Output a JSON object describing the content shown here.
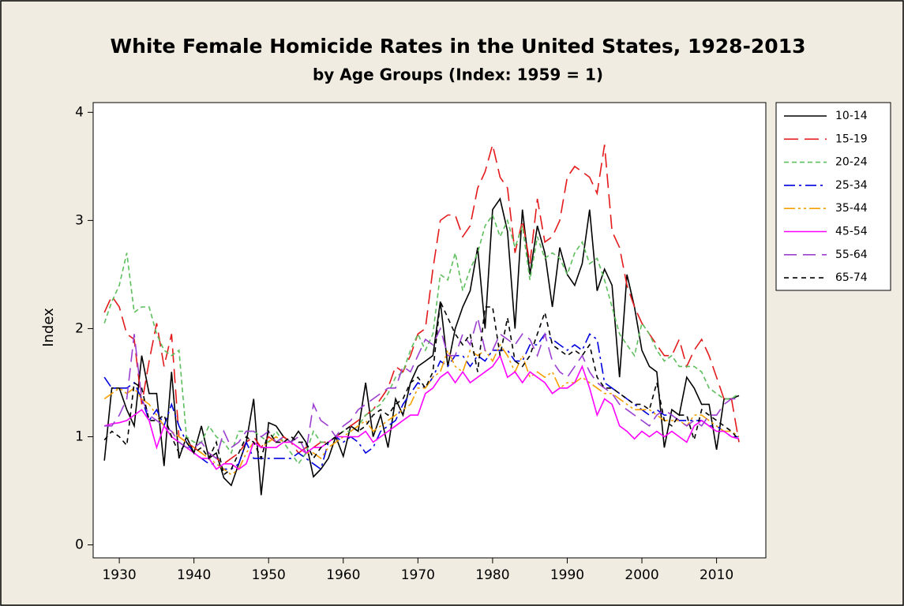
{
  "chart_data": {
    "type": "line",
    "title": "White Female Homicide Rates in the United States, 1928-2013",
    "subtitle": "by Age Groups (Index: 1959 = 1)",
    "y_label": "Index",
    "x": [
      1928,
      1929,
      1930,
      1931,
      1932,
      1933,
      1934,
      1935,
      1936,
      1937,
      1938,
      1939,
      1940,
      1941,
      1942,
      1943,
      1944,
      1945,
      1946,
      1947,
      1948,
      1949,
      1950,
      1951,
      1952,
      1953,
      1954,
      1955,
      1956,
      1957,
      1958,
      1959,
      1960,
      1961,
      1962,
      1963,
      1964,
      1965,
      1966,
      1967,
      1968,
      1969,
      1970,
      1971,
      1972,
      1973,
      1974,
      1975,
      1976,
      1977,
      1978,
      1979,
      1980,
      1981,
      1982,
      1983,
      1984,
      1985,
      1986,
      1987,
      1988,
      1989,
      1990,
      1991,
      1992,
      1993,
      1994,
      1995,
      1996,
      1997,
      1998,
      1999,
      2000,
      2001,
      2002,
      2003,
      2004,
      2005,
      2006,
      2007,
      2008,
      2009,
      2010,
      2011,
      2012,
      2013
    ],
    "xlim": [
      1926.5,
      2016.6
    ],
    "xticks": [
      1930,
      1940,
      1950,
      1960,
      1970,
      1980,
      1990,
      2000,
      2010
    ],
    "ylim": [
      -0.12,
      4.09
    ],
    "yticks": [
      0,
      1,
      2,
      3,
      4
    ],
    "legend": "right",
    "series": [
      {
        "name": "10-14",
        "color": "#000000",
        "values": [
          0.78,
          1.45,
          1.45,
          1.25,
          1.1,
          1.75,
          1.4,
          1.4,
          0.73,
          1.6,
          0.8,
          1.0,
          0.85,
          1.1,
          0.8,
          0.85,
          0.62,
          0.55,
          0.75,
          0.95,
          1.35,
          0.46,
          1.13,
          1.1,
          1.0,
          0.95,
          1.05,
          0.95,
          0.63,
          0.7,
          0.8,
          1.0,
          0.82,
          1.1,
          1.05,
          1.5,
          1.0,
          1.2,
          0.9,
          1.35,
          1.2,
          1.5,
          1.65,
          1.7,
          1.75,
          2.25,
          1.65,
          2.0,
          2.2,
          2.35,
          2.75,
          2.0,
          3.1,
          3.2,
          2.9,
          2.0,
          3.1,
          2.5,
          2.95,
          2.7,
          2.2,
          2.75,
          2.5,
          2.4,
          2.6,
          3.1,
          2.35,
          2.55,
          2.4,
          1.55,
          2.5,
          2.2,
          1.8,
          1.65,
          1.6,
          0.9,
          1.25,
          1.2,
          1.55,
          1.45,
          1.3,
          1.3,
          0.88,
          1.35,
          1.35,
          1.38
        ]
      },
      {
        "name": "15-19",
        "color": "#e41a1c",
        "values": [
          2.15,
          2.3,
          2.2,
          1.95,
          1.9,
          1.3,
          1.7,
          2.05,
          1.65,
          1.95,
          1.0,
          0.95,
          0.9,
          0.85,
          0.85,
          0.8,
          0.75,
          0.8,
          0.85,
          0.95,
          1.0,
          0.9,
          1.0,
          0.95,
          1.0,
          0.95,
          0.85,
          0.9,
          0.9,
          0.95,
          0.95,
          1.0,
          1.05,
          1.1,
          1.15,
          1.2,
          1.25,
          1.35,
          1.45,
          1.65,
          1.6,
          1.75,
          1.95,
          2.0,
          2.55,
          3.0,
          3.05,
          3.05,
          2.85,
          2.95,
          3.3,
          3.45,
          3.7,
          3.4,
          3.3,
          2.7,
          3.0,
          2.6,
          3.2,
          2.8,
          2.85,
          3.0,
          3.4,
          3.5,
          3.45,
          3.4,
          3.25,
          3.7,
          2.9,
          2.75,
          2.4,
          2.2,
          2.05,
          1.95,
          1.85,
          1.75,
          1.75,
          1.9,
          1.65,
          1.8,
          1.9,
          1.75,
          1.55,
          1.35,
          1.35,
          0.95
        ]
      },
      {
        "name": "20-24",
        "color": "#5cbf5c",
        "values": [
          2.05,
          2.25,
          2.4,
          2.7,
          2.15,
          2.2,
          2.2,
          1.95,
          1.8,
          1.75,
          1.8,
          1.0,
          0.95,
          0.95,
          1.1,
          1.0,
          0.95,
          0.85,
          1.05,
          1.05,
          1.05,
          1.0,
          0.95,
          1.05,
          0.95,
          0.85,
          0.75,
          0.85,
          1.05,
          0.95,
          0.95,
          1.0,
          1.05,
          1.05,
          1.1,
          1.2,
          1.25,
          1.3,
          1.4,
          1.55,
          1.6,
          1.8,
          1.95,
          1.8,
          1.95,
          2.5,
          2.45,
          2.7,
          2.35,
          2.55,
          2.7,
          2.95,
          3.05,
          2.85,
          3.0,
          2.75,
          2.95,
          2.45,
          2.85,
          2.65,
          2.7,
          2.65,
          2.5,
          2.7,
          2.8,
          2.6,
          2.65,
          2.45,
          2.2,
          1.95,
          1.85,
          1.75,
          2.05,
          1.95,
          1.8,
          1.7,
          1.75,
          1.65,
          1.65,
          1.65,
          1.6,
          1.45,
          1.4,
          1.35,
          1.35,
          1.4
        ]
      },
      {
        "name": "25-34",
        "color": "#0000e0",
        "values": [
          1.55,
          1.45,
          1.45,
          1.45,
          1.5,
          1.35,
          1.15,
          1.25,
          1.1,
          1.3,
          1.1,
          0.95,
          0.85,
          0.8,
          0.75,
          0.75,
          0.7,
          0.7,
          0.75,
          0.95,
          0.8,
          0.8,
          0.8,
          0.8,
          0.8,
          0.8,
          0.85,
          0.8,
          0.75,
          0.7,
          0.95,
          1.0,
          0.95,
          1.0,
          0.95,
          0.85,
          0.9,
          1.05,
          1.1,
          1.15,
          1.3,
          1.4,
          1.5,
          1.45,
          1.55,
          1.7,
          1.65,
          1.75,
          1.75,
          1.65,
          1.75,
          1.7,
          1.8,
          1.8,
          1.8,
          1.7,
          1.7,
          1.85,
          1.85,
          1.95,
          1.9,
          1.85,
          1.8,
          1.85,
          1.8,
          1.95,
          1.9,
          1.5,
          1.45,
          1.4,
          1.35,
          1.3,
          1.25,
          1.2,
          1.25,
          1.2,
          1.2,
          1.15,
          1.15,
          1.15,
          1.15,
          1.1,
          1.1,
          1.05,
          1.0,
          1.0
        ]
      },
      {
        "name": "35-44",
        "color": "#f5a000",
        "values": [
          1.35,
          1.4,
          1.45,
          1.4,
          1.45,
          1.35,
          1.3,
          1.2,
          1.1,
          1.05,
          1.0,
          0.95,
          0.9,
          0.85,
          0.8,
          0.75,
          0.7,
          0.65,
          0.7,
          0.85,
          0.95,
          0.9,
          0.95,
          1.0,
          0.95,
          0.95,
          0.9,
          0.85,
          0.85,
          0.8,
          0.9,
          0.95,
          1.0,
          1.05,
          1.1,
          1.15,
          1.05,
          1.1,
          1.15,
          1.2,
          1.25,
          1.3,
          1.45,
          1.45,
          1.55,
          1.6,
          1.8,
          1.65,
          1.6,
          1.8,
          1.75,
          1.8,
          1.7,
          1.85,
          1.75,
          1.6,
          1.75,
          1.55,
          1.6,
          1.55,
          1.6,
          1.45,
          1.5,
          1.5,
          1.55,
          1.5,
          1.45,
          1.4,
          1.4,
          1.35,
          1.3,
          1.25,
          1.25,
          1.25,
          1.2,
          1.15,
          1.15,
          1.15,
          1.1,
          1.2,
          1.2,
          1.15,
          1.1,
          1.05,
          1.05,
          1.0
        ]
      },
      {
        "name": "45-54",
        "color": "#ff00ff",
        "values": [
          1.1,
          1.12,
          1.13,
          1.15,
          1.2,
          1.25,
          1.15,
          0.9,
          1.1,
          1.0,
          0.95,
          0.9,
          0.85,
          0.8,
          0.8,
          0.7,
          0.75,
          0.75,
          0.7,
          0.75,
          0.95,
          0.9,
          0.9,
          0.9,
          0.95,
          0.95,
          0.9,
          0.85,
          0.9,
          0.9,
          0.95,
          1.0,
          1.0,
          1.0,
          1.0,
          1.05,
          0.95,
          1.0,
          1.05,
          1.1,
          1.15,
          1.2,
          1.2,
          1.4,
          1.45,
          1.55,
          1.6,
          1.5,
          1.6,
          1.5,
          1.55,
          1.6,
          1.65,
          1.75,
          1.55,
          1.6,
          1.5,
          1.6,
          1.55,
          1.5,
          1.4,
          1.45,
          1.45,
          1.5,
          1.65,
          1.45,
          1.2,
          1.35,
          1.3,
          1.1,
          1.05,
          0.98,
          1.05,
          1.0,
          1.05,
          1.0,
          1.05,
          1.0,
          0.95,
          1.1,
          1.15,
          1.1,
          1.05,
          1.05,
          1.0,
          0.98
        ]
      },
      {
        "name": "55-64",
        "color": "#9b3fd0",
        "values": [
          1.1,
          1.1,
          1.2,
          1.35,
          1.95,
          1.35,
          1.2,
          1.15,
          1.1,
          1.05,
          0.95,
          0.9,
          0.9,
          0.95,
          0.85,
          0.8,
          1.05,
          0.9,
          0.95,
          1.05,
          1.05,
          1.0,
          1.05,
          0.95,
          1.0,
          0.95,
          1.0,
          0.85,
          1.3,
          1.15,
          1.1,
          1.0,
          1.1,
          1.15,
          1.25,
          1.3,
          1.35,
          1.4,
          1.45,
          1.45,
          1.65,
          1.6,
          1.75,
          1.9,
          1.85,
          2.0,
          1.75,
          1.75,
          1.95,
          1.85,
          2.1,
          1.8,
          1.8,
          1.95,
          1.9,
          1.85,
          1.95,
          1.9,
          1.75,
          1.95,
          1.7,
          1.6,
          1.55,
          1.65,
          1.75,
          1.6,
          1.5,
          1.45,
          1.4,
          1.3,
          1.25,
          1.2,
          1.15,
          1.1,
          1.2,
          1.25,
          1.2,
          1.15,
          1.1,
          1.15,
          1.1,
          1.2,
          1.2,
          1.3,
          1.35,
          1.35
        ]
      },
      {
        "name": "65-74",
        "color": "#000000",
        "values": [
          0.97,
          1.05,
          1.0,
          0.92,
          1.5,
          1.45,
          1.15,
          1.15,
          1.2,
          1.0,
          0.85,
          0.95,
          0.85,
          0.9,
          0.8,
          0.95,
          0.65,
          0.7,
          0.85,
          1.0,
          0.95,
          0.8,
          1.05,
          0.95,
          0.95,
          1.0,
          0.95,
          0.95,
          0.8,
          0.9,
          0.95,
          1.0,
          1.05,
          1.1,
          1.05,
          1.1,
          1.2,
          1.25,
          1.2,
          1.3,
          1.35,
          1.5,
          1.55,
          1.45,
          1.6,
          2.25,
          2.1,
          1.95,
          1.85,
          1.95,
          1.6,
          2.2,
          2.2,
          1.75,
          2.1,
          1.7,
          1.65,
          1.75,
          1.95,
          2.15,
          1.85,
          1.8,
          1.75,
          1.8,
          1.75,
          1.85,
          1.55,
          1.45,
          1.45,
          1.4,
          1.35,
          1.3,
          1.3,
          1.25,
          1.5,
          1.15,
          1.1,
          1.2,
          1.2,
          0.97,
          1.25,
          1.2,
          1.15,
          1.1,
          1.05,
          0.97
        ]
      }
    ]
  }
}
